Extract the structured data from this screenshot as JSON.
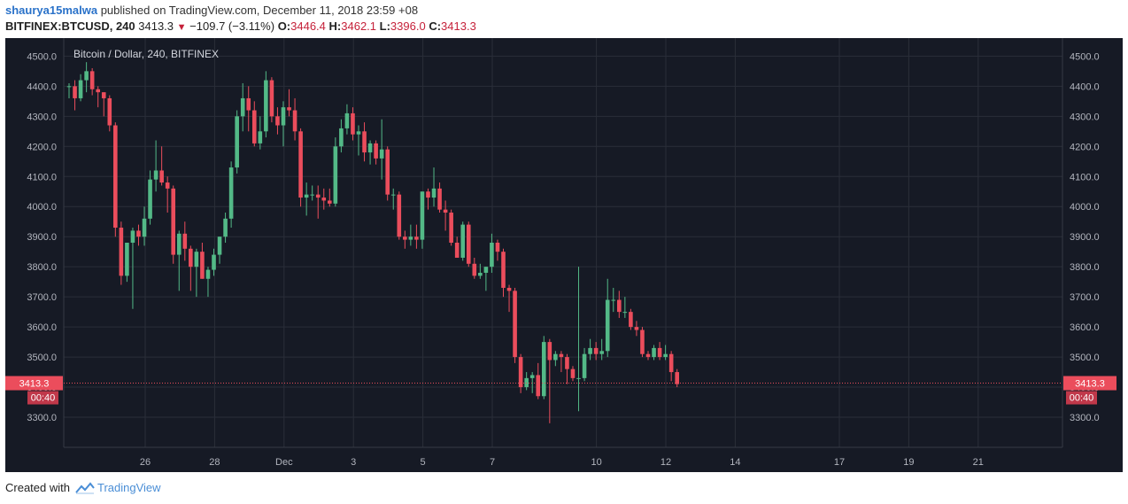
{
  "header": {
    "user": "shaurya15malwa",
    "published_text": "published on TradingView.com, December 11, 2018 23:59 +08",
    "symbol": "BITFINEX:BTCUSD, 240",
    "last": "3413.3",
    "change": "−109.7 (−3.11%)",
    "o_label": "O:",
    "o_val": "3446.4",
    "h_label": "H:",
    "h_val": "3462.1",
    "l_label": "L:",
    "l_val": "3396.0",
    "c_label": "C:",
    "c_val": "3413.3"
  },
  "footer": {
    "created_with": "Created with",
    "brand": "TradingView"
  },
  "colors": {
    "bg": "#161a25",
    "up": "#53b987",
    "down": "#eb4d5c",
    "grid": "#2a2e39",
    "text": "#b2b5be",
    "price_tag": "#eb4d5c"
  },
  "chart_data": {
    "type": "candlestick",
    "title": "Bitcoin / Dollar, 240, BITFINEX",
    "ylim": [
      3200,
      4560
    ],
    "y_ticks": [
      3300,
      3400,
      3500,
      3600,
      3700,
      3800,
      3900,
      4000,
      4100,
      4200,
      4300,
      4400,
      4500
    ],
    "y_tick_labels": [
      "3300.0",
      "3400.0",
      "3500.0",
      "3600.0",
      "3700.0",
      "3800.0",
      "3900.0",
      "4000.0",
      "4100.0",
      "4200.0",
      "4300.0",
      "4400.0",
      "4500.0"
    ],
    "x_ticks": [
      {
        "label": "26",
        "day": 26
      },
      {
        "label": "28",
        "day": 28
      },
      {
        "label": "Dec",
        "day": 30
      },
      {
        "label": "3",
        "day": 32
      },
      {
        "label": "5",
        "day": 34
      },
      {
        "label": "7",
        "day": 36
      },
      {
        "label": "10",
        "day": 39
      },
      {
        "label": "12",
        "day": 41
      },
      {
        "label": "14",
        "day": 43
      },
      {
        "label": "17",
        "day": 46
      },
      {
        "label": "19",
        "day": 48
      },
      {
        "label": "21",
        "day": 50
      }
    ],
    "current_price": 3413.3,
    "current_price_label": "3413.3",
    "countdown_label": "00:40",
    "candles": [
      [
        4400,
        4410,
        4360,
        4400
      ],
      [
        4400,
        4420,
        4320,
        4360
      ],
      [
        4360,
        4440,
        4350,
        4420
      ],
      [
        4420,
        4480,
        4380,
        4450
      ],
      [
        4450,
        4460,
        4370,
        4390
      ],
      [
        4390,
        4400,
        4330,
        4380
      ],
      [
        4380,
        4380,
        4300,
        4360
      ],
      [
        4360,
        4370,
        4250,
        4270
      ],
      [
        4270,
        4280,
        3900,
        3930
      ],
      [
        3930,
        3950,
        3740,
        3770
      ],
      [
        3770,
        3880,
        3750,
        3880
      ],
      [
        3880,
        3930,
        3660,
        3920
      ],
      [
        3920,
        3940,
        3870,
        3900
      ],
      [
        3900,
        4000,
        3870,
        3960
      ],
      [
        3960,
        4120,
        3940,
        4090
      ],
      [
        4090,
        4220,
        4050,
        4120
      ],
      [
        4120,
        4200,
        4070,
        4080
      ],
      [
        4080,
        4100,
        3980,
        4060
      ],
      [
        4060,
        4070,
        3810,
        3840
      ],
      [
        3840,
        3920,
        3720,
        3910
      ],
      [
        3910,
        3950,
        3820,
        3860
      ],
      [
        3860,
        3870,
        3720,
        3800
      ],
      [
        3800,
        3860,
        3700,
        3850
      ],
      [
        3850,
        3880,
        3760,
        3760
      ],
      [
        3760,
        3800,
        3700,
        3790
      ],
      [
        3790,
        3860,
        3770,
        3840
      ],
      [
        3840,
        3900,
        3810,
        3900
      ],
      [
        3900,
        3980,
        3880,
        3960
      ],
      [
        3960,
        4150,
        3930,
        4130
      ],
      [
        4130,
        4320,
        4110,
        4300
      ],
      [
        4300,
        4410,
        4250,
        4360
      ],
      [
        4360,
        4400,
        4250,
        4320
      ],
      [
        4320,
        4350,
        4200,
        4210
      ],
      [
        4210,
        4300,
        4190,
        4250
      ],
      [
        4250,
        4450,
        4230,
        4420
      ],
      [
        4420,
        4430,
        4280,
        4300
      ],
      [
        4300,
        4330,
        4240,
        4270
      ],
      [
        4270,
        4350,
        4200,
        4330
      ],
      [
        4330,
        4390,
        4300,
        4320
      ],
      [
        4320,
        4360,
        4220,
        4250
      ],
      [
        4250,
        4260,
        4000,
        4030
      ],
      [
        4030,
        4080,
        3970,
        4040
      ],
      [
        4040,
        4070,
        4020,
        4040
      ],
      [
        4040,
        4070,
        3960,
        4030
      ],
      [
        4030,
        4060,
        3990,
        4020
      ],
      [
        4020,
        4060,
        4000,
        4010
      ],
      [
        4010,
        4230,
        4000,
        4200
      ],
      [
        4200,
        4290,
        4180,
        4260
      ],
      [
        4260,
        4340,
        4240,
        4310
      ],
      [
        4310,
        4330,
        4220,
        4240
      ],
      [
        4240,
        4270,
        4170,
        4250
      ],
      [
        4250,
        4280,
        4150,
        4180
      ],
      [
        4180,
        4220,
        4140,
        4210
      ],
      [
        4210,
        4220,
        4140,
        4160
      ],
      [
        4160,
        4290,
        4090,
        4190
      ],
      [
        4190,
        4200,
        4020,
        4040
      ],
      [
        4040,
        4060,
        3990,
        4040
      ],
      [
        4040,
        4050,
        3890,
        3900
      ],
      [
        3900,
        3920,
        3860,
        3890
      ],
      [
        3890,
        3940,
        3870,
        3900
      ],
      [
        3900,
        3940,
        3860,
        3890
      ],
      [
        3890,
        4050,
        3860,
        4050
      ],
      [
        4050,
        4060,
        3990,
        4030
      ],
      [
        4030,
        4130,
        4000,
        4060
      ],
      [
        4060,
        4080,
        3980,
        3990
      ],
      [
        3990,
        4020,
        3920,
        3980
      ],
      [
        3980,
        3990,
        3870,
        3880
      ],
      [
        3880,
        3900,
        3830,
        3830
      ],
      [
        3830,
        3950,
        3820,
        3940
      ],
      [
        3940,
        3950,
        3800,
        3810
      ],
      [
        3810,
        3830,
        3760,
        3770
      ],
      [
        3770,
        3810,
        3760,
        3780
      ],
      [
        3780,
        3800,
        3720,
        3800
      ],
      [
        3800,
        3910,
        3780,
        3880
      ],
      [
        3880,
        3890,
        3820,
        3850
      ],
      [
        3850,
        3860,
        3700,
        3730
      ],
      [
        3730,
        3740,
        3650,
        3720
      ],
      [
        3720,
        3730,
        3480,
        3500
      ],
      [
        3500,
        3510,
        3380,
        3400
      ],
      [
        3400,
        3450,
        3390,
        3430
      ],
      [
        3430,
        3450,
        3380,
        3440
      ],
      [
        3440,
        3480,
        3360,
        3370
      ],
      [
        3370,
        3570,
        3360,
        3550
      ],
      [
        3550,
        3560,
        3280,
        3490
      ],
      [
        3490,
        3520,
        3470,
        3510
      ],
      [
        3510,
        3520,
        3450,
        3500
      ],
      [
        3500,
        3510,
        3410,
        3460
      ],
      [
        3460,
        3470,
        3420,
        3430
      ],
      [
        3430,
        3800,
        3320,
        3430
      ],
      [
        3430,
        3530,
        3420,
        3510
      ],
      [
        3510,
        3560,
        3490,
        3530
      ],
      [
        3530,
        3550,
        3490,
        3510
      ],
      [
        3510,
        3560,
        3490,
        3520
      ],
      [
        3520,
        3760,
        3500,
        3690
      ],
      [
        3690,
        3730,
        3650,
        3690
      ],
      [
        3690,
        3720,
        3630,
        3650
      ],
      [
        3650,
        3700,
        3630,
        3650
      ],
      [
        3650,
        3660,
        3590,
        3600
      ],
      [
        3600,
        3620,
        3570,
        3590
      ],
      [
        3590,
        3600,
        3500,
        3510
      ],
      [
        3510,
        3520,
        3490,
        3500
      ],
      [
        3500,
        3540,
        3490,
        3530
      ],
      [
        3530,
        3550,
        3490,
        3500
      ],
      [
        3500,
        3540,
        3490,
        3510
      ],
      [
        3510,
        3520,
        3420,
        3450
      ],
      [
        3450,
        3460,
        3400,
        3410
      ]
    ]
  }
}
